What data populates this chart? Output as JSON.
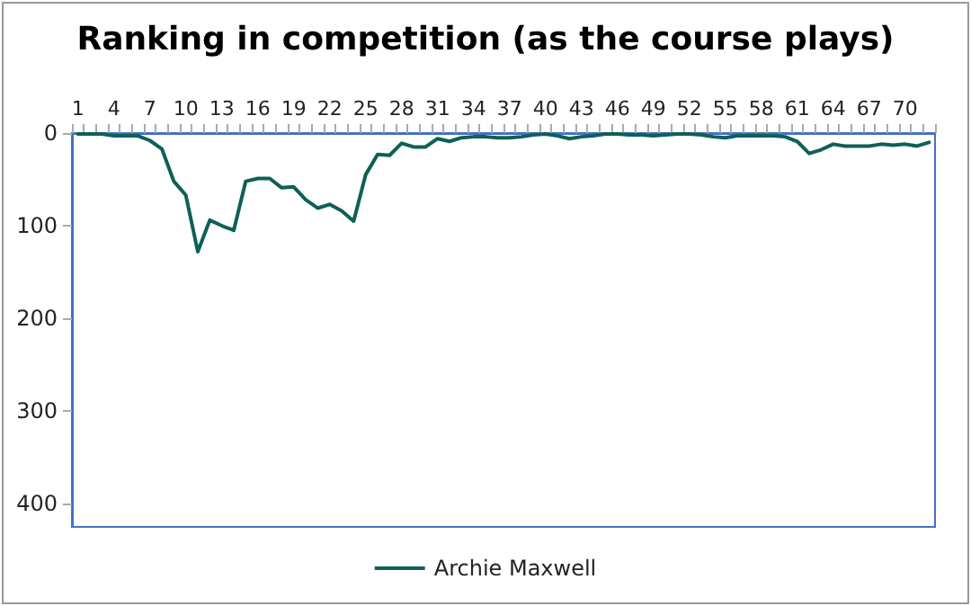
{
  "chart_data": {
    "type": "line",
    "title": "Ranking in competition (as the course plays)",
    "categories": [
      "1",
      null,
      null,
      "4",
      null,
      null,
      "7",
      null,
      null,
      "10",
      null,
      null,
      "13",
      null,
      null,
      "16",
      null,
      null,
      "19",
      null,
      null,
      "22",
      null,
      null,
      "25",
      null,
      null,
      "28",
      null,
      null,
      "31",
      null,
      null,
      "34",
      null,
      null,
      "37",
      null,
      null,
      "40",
      null,
      null,
      "43",
      null,
      null,
      "46",
      null,
      null,
      "49",
      null,
      null,
      "52",
      null,
      null,
      "55",
      null,
      null,
      "58",
      null,
      null,
      "61",
      null,
      null,
      "64",
      null,
      null,
      "67",
      null,
      null,
      "70",
      null,
      null
    ],
    "series": [
      {
        "name": "Archie Maxwell",
        "color": "#0e6058",
        "values": [
          1,
          1,
          1,
          3,
          3,
          3,
          8,
          17,
          52,
          67,
          128,
          94,
          100,
          105,
          52,
          49,
          49,
          59,
          58,
          72,
          81,
          77,
          84,
          95,
          45,
          23,
          24,
          11,
          15,
          15,
          6,
          9,
          5,
          4,
          4,
          5,
          5,
          4,
          2,
          1,
          3,
          6,
          4,
          3,
          1,
          1,
          2,
          2,
          3,
          2,
          1,
          1,
          2,
          4,
          5,
          3,
          3,
          3,
          3,
          4,
          9,
          22,
          18,
          12,
          14,
          14,
          14,
          12,
          13,
          12,
          14,
          10
        ]
      }
    ],
    "ylim": [
      425,
      0
    ],
    "yticks": [
      0,
      100,
      200,
      300,
      400
    ],
    "grid": false,
    "legend": "bottom",
    "marker": "none",
    "line_style": "solid"
  }
}
